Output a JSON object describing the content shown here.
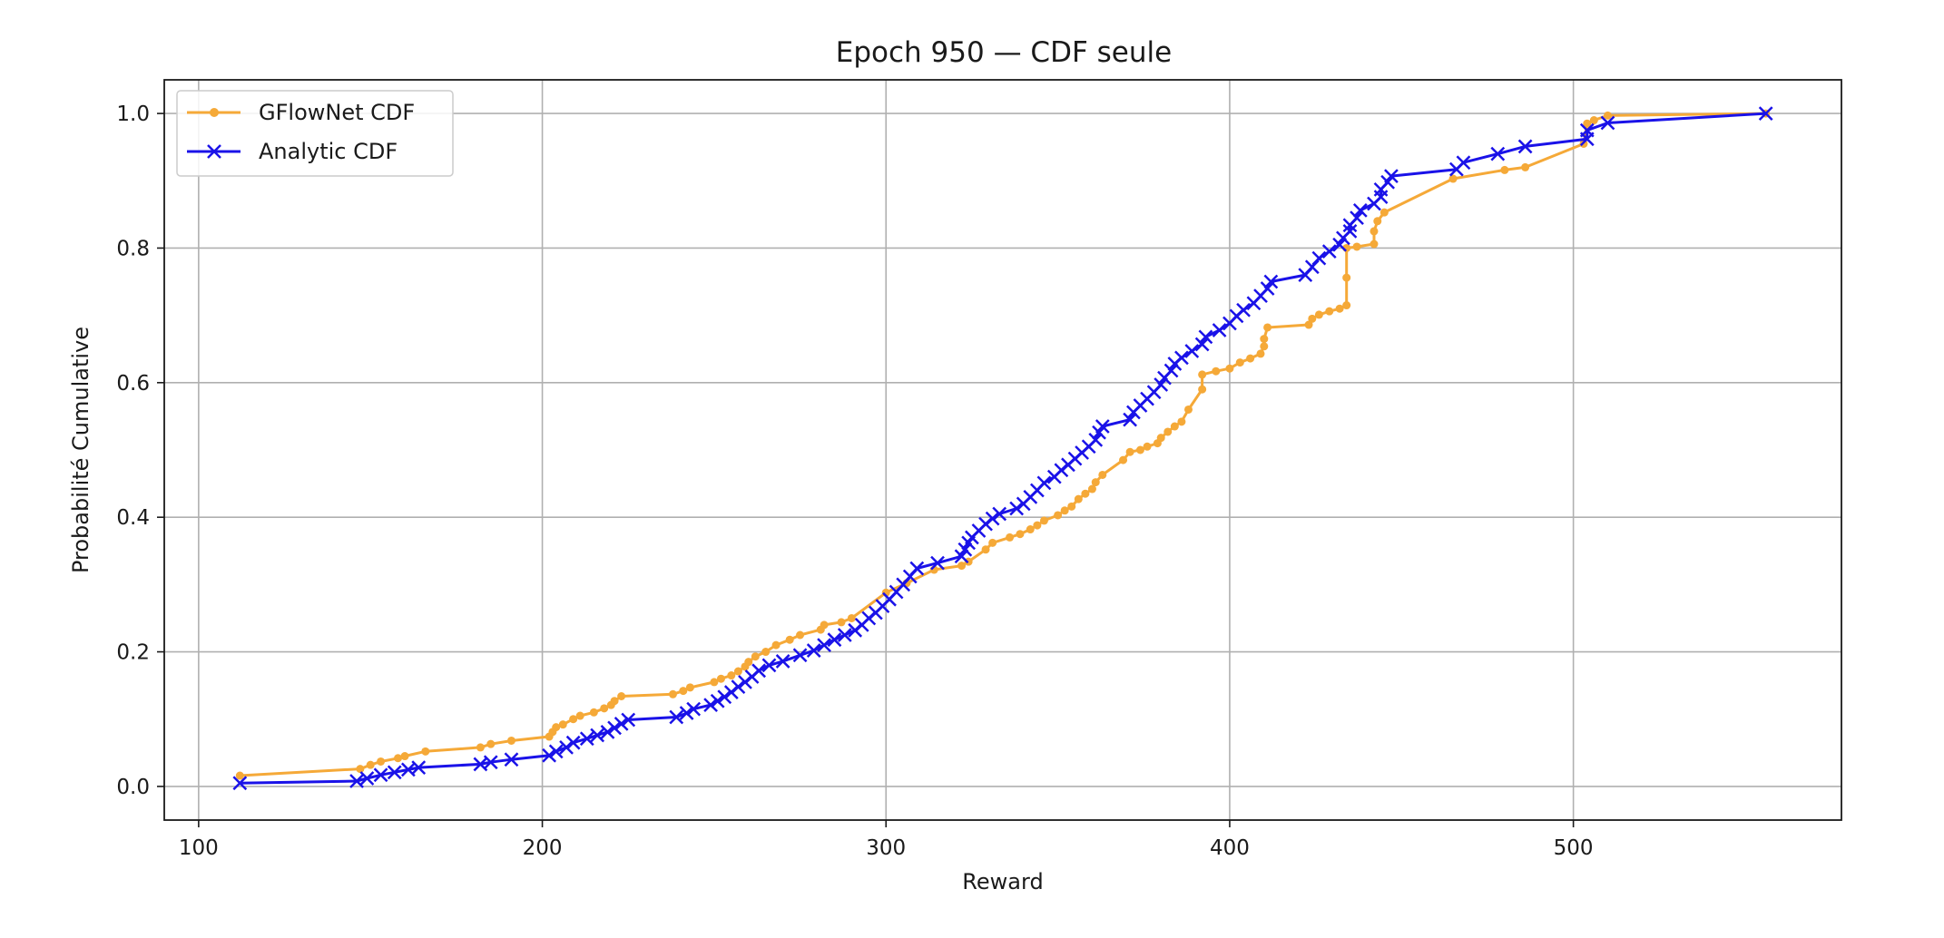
{
  "chart_data": {
    "type": "line",
    "title": "Epoch 950 — CDF seule",
    "xlabel": "Reward",
    "ylabel": "Probabilité Cumulative",
    "xlim": [
      90,
      578
    ],
    "ylim": [
      -0.05,
      1.05
    ],
    "xticks": [
      100,
      200,
      300,
      400,
      500
    ],
    "xtick_labels": [
      "100",
      "200",
      "300",
      "400",
      "500"
    ],
    "yticks": [
      0.0,
      0.2,
      0.4,
      0.6,
      0.8,
      1.0
    ],
    "ytick_labels": [
      "0.0",
      "0.2",
      "0.4",
      "0.6",
      "0.8",
      "1.0"
    ],
    "grid": true,
    "legend_position": "top-left",
    "series": [
      {
        "name": "GFlowNet CDF",
        "color": "#f5a938",
        "marker": "dot",
        "points": [
          [
            112,
            0.016
          ],
          [
            147,
            0.026
          ],
          [
            150,
            0.032
          ],
          [
            153,
            0.037
          ],
          [
            158,
            0.042
          ],
          [
            160,
            0.045
          ],
          [
            166,
            0.052
          ],
          [
            182,
            0.058
          ],
          [
            185,
            0.063
          ],
          [
            191,
            0.068
          ],
          [
            202,
            0.074
          ],
          [
            203,
            0.081
          ],
          [
            204,
            0.088
          ],
          [
            206,
            0.092
          ],
          [
            209,
            0.1
          ],
          [
            211,
            0.105
          ],
          [
            215,
            0.11
          ],
          [
            218,
            0.116
          ],
          [
            220,
            0.121
          ],
          [
            221,
            0.127
          ],
          [
            223,
            0.134
          ],
          [
            238,
            0.137
          ],
          [
            241,
            0.142
          ],
          [
            243,
            0.147
          ],
          [
            250,
            0.155
          ],
          [
            252,
            0.16
          ],
          [
            255,
            0.165
          ],
          [
            257,
            0.171
          ],
          [
            259,
            0.178
          ],
          [
            260,
            0.185
          ],
          [
            262,
            0.193
          ],
          [
            265,
            0.2
          ],
          [
            268,
            0.21
          ],
          [
            272,
            0.218
          ],
          [
            275,
            0.225
          ],
          [
            281,
            0.233
          ],
          [
            282,
            0.24
          ],
          [
            287,
            0.244
          ],
          [
            290,
            0.25
          ],
          [
            300,
            0.288
          ],
          [
            306,
            0.302
          ],
          [
            314,
            0.322
          ],
          [
            322,
            0.328
          ],
          [
            324,
            0.334
          ],
          [
            329,
            0.352
          ],
          [
            331,
            0.362
          ],
          [
            336,
            0.37
          ],
          [
            339,
            0.375
          ],
          [
            342,
            0.382
          ],
          [
            344,
            0.388
          ],
          [
            346,
            0.395
          ],
          [
            350,
            0.403
          ],
          [
            352,
            0.41
          ],
          [
            354,
            0.416
          ],
          [
            356,
            0.427
          ],
          [
            358,
            0.435
          ],
          [
            360,
            0.442
          ],
          [
            361,
            0.452
          ],
          [
            363,
            0.463
          ],
          [
            369,
            0.485
          ],
          [
            371,
            0.497
          ],
          [
            374,
            0.5
          ],
          [
            376,
            0.505
          ],
          [
            379,
            0.51
          ],
          [
            380,
            0.518
          ],
          [
            382,
            0.527
          ],
          [
            384,
            0.535
          ],
          [
            386,
            0.542
          ],
          [
            388,
            0.56
          ],
          [
            392,
            0.59
          ],
          [
            392,
            0.612
          ],
          [
            396,
            0.617
          ],
          [
            400,
            0.621
          ],
          [
            403,
            0.63
          ],
          [
            406,
            0.636
          ],
          [
            409,
            0.643
          ],
          [
            410,
            0.654
          ],
          [
            410,
            0.665
          ],
          [
            411,
            0.682
          ],
          [
            423,
            0.686
          ],
          [
            424,
            0.695
          ],
          [
            426,
            0.701
          ],
          [
            429,
            0.706
          ],
          [
            432,
            0.71
          ],
          [
            434,
            0.715
          ],
          [
            434,
            0.756
          ],
          [
            434,
            0.8
          ],
          [
            437,
            0.802
          ],
          [
            442,
            0.806
          ],
          [
            442,
            0.825
          ],
          [
            443,
            0.84
          ],
          [
            445,
            0.853
          ],
          [
            465,
            0.903
          ],
          [
            480,
            0.916
          ],
          [
            486,
            0.92
          ],
          [
            503,
            0.955
          ],
          [
            504,
            0.985
          ],
          [
            506,
            0.99
          ],
          [
            510,
            0.997
          ],
          [
            556,
            1.0
          ]
        ]
      },
      {
        "name": "Analytic CDF",
        "color": "#1a12e8",
        "marker": "x",
        "points": [
          [
            112,
            0.005
          ],
          [
            146,
            0.008
          ],
          [
            149,
            0.012
          ],
          [
            153,
            0.017
          ],
          [
            157,
            0.021
          ],
          [
            161,
            0.025
          ],
          [
            164,
            0.028
          ],
          [
            182,
            0.033
          ],
          [
            185,
            0.036
          ],
          [
            191,
            0.04
          ],
          [
            202,
            0.046
          ],
          [
            204,
            0.052
          ],
          [
            207,
            0.058
          ],
          [
            209,
            0.065
          ],
          [
            213,
            0.071
          ],
          [
            216,
            0.076
          ],
          [
            219,
            0.081
          ],
          [
            221,
            0.087
          ],
          [
            223,
            0.093
          ],
          [
            225,
            0.099
          ],
          [
            239,
            0.103
          ],
          [
            242,
            0.109
          ],
          [
            244,
            0.115
          ],
          [
            249,
            0.121
          ],
          [
            251,
            0.127
          ],
          [
            253,
            0.133
          ],
          [
            255,
            0.14
          ],
          [
            257,
            0.148
          ],
          [
            259,
            0.155
          ],
          [
            261,
            0.163
          ],
          [
            263,
            0.172
          ],
          [
            266,
            0.18
          ],
          [
            270,
            0.186
          ],
          [
            275,
            0.195
          ],
          [
            279,
            0.202
          ],
          [
            282,
            0.21
          ],
          [
            285,
            0.218
          ],
          [
            288,
            0.225
          ],
          [
            291,
            0.232
          ],
          [
            293,
            0.24
          ],
          [
            295,
            0.25
          ],
          [
            297,
            0.258
          ],
          [
            299,
            0.268
          ],
          [
            301,
            0.278
          ],
          [
            303,
            0.289
          ],
          [
            305,
            0.3
          ],
          [
            307,
            0.312
          ],
          [
            309,
            0.324
          ],
          [
            315,
            0.332
          ],
          [
            322,
            0.342
          ],
          [
            323,
            0.352
          ],
          [
            324,
            0.362
          ],
          [
            325,
            0.37
          ],
          [
            327,
            0.38
          ],
          [
            329,
            0.39
          ],
          [
            331,
            0.398
          ],
          [
            333,
            0.405
          ],
          [
            338,
            0.413
          ],
          [
            340,
            0.42
          ],
          [
            342,
            0.43
          ],
          [
            344,
            0.44
          ],
          [
            346,
            0.451
          ],
          [
            349,
            0.46
          ],
          [
            351,
            0.47
          ],
          [
            353,
            0.478
          ],
          [
            355,
            0.487
          ],
          [
            357,
            0.496
          ],
          [
            359,
            0.505
          ],
          [
            361,
            0.515
          ],
          [
            362,
            0.526
          ],
          [
            363,
            0.535
          ],
          [
            371,
            0.545
          ],
          [
            372,
            0.556
          ],
          [
            374,
            0.566
          ],
          [
            376,
            0.576
          ],
          [
            378,
            0.586
          ],
          [
            380,
            0.597
          ],
          [
            381,
            0.607
          ],
          [
            383,
            0.618
          ],
          [
            384,
            0.628
          ],
          [
            386,
            0.637
          ],
          [
            389,
            0.647
          ],
          [
            392,
            0.657
          ],
          [
            393,
            0.668
          ],
          [
            397,
            0.678
          ],
          [
            400,
            0.688
          ],
          [
            402,
            0.699
          ],
          [
            404,
            0.708
          ],
          [
            407,
            0.718
          ],
          [
            409,
            0.729
          ],
          [
            411,
            0.74
          ],
          [
            412,
            0.75
          ],
          [
            422,
            0.76
          ],
          [
            424,
            0.772
          ],
          [
            426,
            0.785
          ],
          [
            429,
            0.795
          ],
          [
            432,
            0.805
          ],
          [
            433,
            0.815
          ],
          [
            435,
            0.825
          ],
          [
            435,
            0.834
          ],
          [
            437,
            0.845
          ],
          [
            438,
            0.856
          ],
          [
            442,
            0.866
          ],
          [
            444,
            0.876
          ],
          [
            444,
            0.887
          ],
          [
            446,
            0.898
          ],
          [
            447,
            0.907
          ],
          [
            466,
            0.917
          ],
          [
            468,
            0.927
          ],
          [
            478,
            0.94
          ],
          [
            486,
            0.951
          ],
          [
            504,
            0.962
          ],
          [
            504,
            0.975
          ],
          [
            510,
            0.986
          ],
          [
            556,
            1.0
          ]
        ]
      }
    ]
  }
}
